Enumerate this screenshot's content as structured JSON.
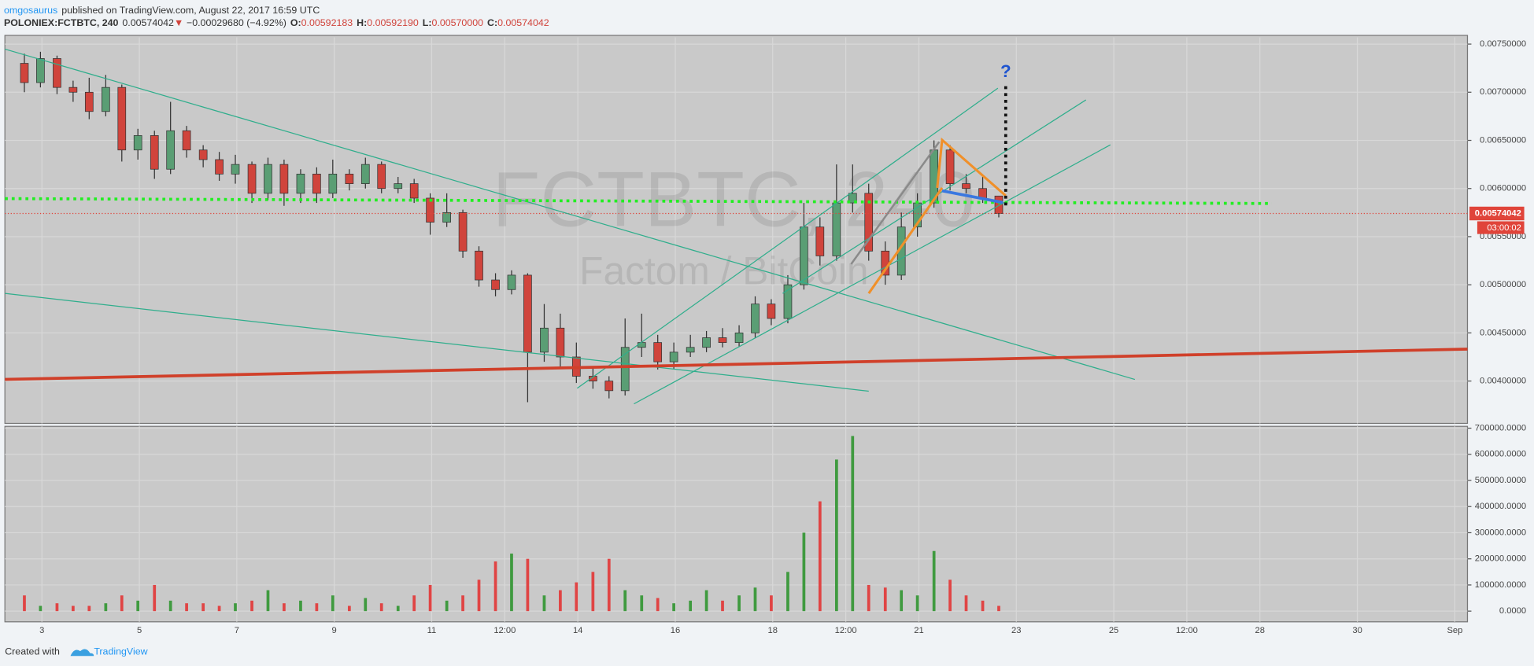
{
  "header": {
    "author": "omgosaurus",
    "published": "published on TradingView.com, August 22, 2017 16:59 UTC",
    "symbol": "POLONIEX:FCTBTC, 240",
    "last": "0.00574042",
    "arrow": "▼",
    "change": "−0.00029680 (−4.92%)",
    "o_label": "O:",
    "o": "0.00592183",
    "h_label": "H:",
    "h": "0.00592190",
    "l_label": "L:",
    "l": "0.00570000",
    "c_label": "C:",
    "c": "0.00574042"
  },
  "watermark": {
    "symbol": "FCTBTC, 240",
    "name": "Factom / BitCoin"
  },
  "annotations": [
    "?"
  ],
  "footer": {
    "created": "Created with",
    "brand": "TradingView"
  },
  "chart_data": {
    "type": "candlestick",
    "up_color": "#5a9e74",
    "down_color": "#d0443c",
    "grid": true,
    "x": [
      2.64,
      2.97,
      3.31,
      3.64,
      3.97,
      4.31,
      4.64,
      4.97,
      5.31,
      5.64,
      5.97,
      6.31,
      6.64,
      6.97,
      7.31,
      7.64,
      7.97,
      8.31,
      8.64,
      8.97,
      9.31,
      9.64,
      9.97,
      10.31,
      10.64,
      10.97,
      11.31,
      11.64,
      11.97,
      12.31,
      12.64,
      12.97,
      13.31,
      13.64,
      13.97,
      14.31,
      14.64,
      14.97,
      15.31,
      15.64,
      15.97,
      16.31,
      16.64,
      16.97,
      17.31,
      17.64,
      17.97,
      18.31,
      18.64,
      18.97,
      19.31,
      19.64,
      19.97,
      20.31,
      20.64,
      20.97,
      21.31,
      21.64,
      21.97,
      22.31,
      22.64
    ],
    "open": [
      0.0073,
      0.0071,
      0.00735,
      0.00705,
      0.007,
      0.0068,
      0.00705,
      0.0064,
      0.00655,
      0.0062,
      0.0066,
      0.0064,
      0.0063,
      0.00615,
      0.00625,
      0.00595,
      0.00625,
      0.00595,
      0.00615,
      0.00595,
      0.00615,
      0.00605,
      0.00625,
      0.006,
      0.00605,
      0.0059,
      0.00565,
      0.00575,
      0.00535,
      0.00505,
      0.00495,
      0.0051,
      0.0043,
      0.00455,
      0.00425,
      0.00405,
      0.004,
      0.0039,
      0.00435,
      0.0044,
      0.0042,
      0.0043,
      0.00435,
      0.00445,
      0.0044,
      0.0045,
      0.0048,
      0.00465,
      0.005,
      0.0056,
      0.0053,
      0.00585,
      0.00595,
      0.00535,
      0.0051,
      0.0056,
      0.00585,
      0.0064,
      0.00605,
      0.006,
      0.00592183
    ],
    "high": [
      0.0074,
      0.00742,
      0.00738,
      0.00712,
      0.00715,
      0.00718,
      0.00708,
      0.00662,
      0.0066,
      0.0069,
      0.00665,
      0.00645,
      0.00638,
      0.00635,
      0.00628,
      0.00632,
      0.0063,
      0.0062,
      0.00622,
      0.0063,
      0.0062,
      0.00632,
      0.00628,
      0.00612,
      0.0061,
      0.00595,
      0.00595,
      0.00578,
      0.0054,
      0.00512,
      0.00515,
      0.00512,
      0.0048,
      0.0047,
      0.0044,
      0.00415,
      0.00405,
      0.00465,
      0.0047,
      0.00448,
      0.0044,
      0.00448,
      0.00452,
      0.00455,
      0.00458,
      0.00488,
      0.00485,
      0.0051,
      0.00585,
      0.0057,
      0.00625,
      0.00625,
      0.00605,
      0.00545,
      0.00575,
      0.00595,
      0.0065,
      0.00645,
      0.00615,
      0.00612,
      0.0059219
    ],
    "low": [
      0.007,
      0.00705,
      0.00698,
      0.0069,
      0.00672,
      0.00675,
      0.00628,
      0.0063,
      0.0061,
      0.00615,
      0.00632,
      0.00622,
      0.00608,
      0.00605,
      0.00585,
      0.00588,
      0.00582,
      0.00585,
      0.00585,
      0.0059,
      0.00598,
      0.006,
      0.00595,
      0.00595,
      0.00585,
      0.00552,
      0.0056,
      0.00528,
      0.00498,
      0.00488,
      0.0049,
      0.00378,
      0.0042,
      0.00415,
      0.00398,
      0.00392,
      0.00382,
      0.00385,
      0.00425,
      0.00412,
      0.00412,
      0.00425,
      0.0043,
      0.00435,
      0.00436,
      0.00445,
      0.00458,
      0.0046,
      0.00495,
      0.0052,
      0.00525,
      0.00575,
      0.00525,
      0.005,
      0.00505,
      0.0055,
      0.0058,
      0.00598,
      0.00595,
      0.00585,
      0.0057
    ],
    "close": [
      0.0071,
      0.00735,
      0.00705,
      0.007,
      0.0068,
      0.00705,
      0.0064,
      0.00655,
      0.0062,
      0.0066,
      0.0064,
      0.0063,
      0.00615,
      0.00625,
      0.00595,
      0.00625,
      0.00595,
      0.00615,
      0.00595,
      0.00615,
      0.00605,
      0.00625,
      0.006,
      0.00605,
      0.0059,
      0.00565,
      0.00575,
      0.00535,
      0.00505,
      0.00495,
      0.0051,
      0.0043,
      0.00455,
      0.00425,
      0.00405,
      0.004,
      0.0039,
      0.00435,
      0.0044,
      0.0042,
      0.0043,
      0.00435,
      0.00445,
      0.0044,
      0.0045,
      0.0048,
      0.00465,
      0.005,
      0.0056,
      0.0053,
      0.00585,
      0.00595,
      0.00535,
      0.0051,
      0.0056,
      0.00585,
      0.0064,
      0.00605,
      0.006,
      0.0059,
      0.00574042
    ],
    "xlim": [
      2.24,
      32.26
    ],
    "xticks": [
      3,
      5,
      7,
      9,
      11,
      {
        "value": 12.5,
        "label": "12:00"
      },
      14,
      16,
      18,
      {
        "value": 19.5,
        "label": "12:00"
      },
      21,
      23,
      25,
      {
        "value": 26.5,
        "label": "12:00"
      },
      28,
      30,
      {
        "value": 32,
        "label": "Sep"
      }
    ],
    "ylim": [
      0.00356,
      0.00757
    ],
    "yticks": [
      {
        "value": 0.0075,
        "label": "0.00750000"
      },
      {
        "value": 0.007,
        "label": "0.00700000"
      },
      {
        "value": 0.0065,
        "label": "0.00650000"
      },
      {
        "value": 0.006,
        "label": "0.00600000"
      },
      {
        "value": 0.0055,
        "label": "0.00550000"
      },
      {
        "value": 0.005,
        "label": "0.00500000"
      },
      {
        "value": 0.0045,
        "label": "0.00450000"
      },
      {
        "value": 0.004,
        "label": "0.00400000"
      }
    ],
    "price_line": {
      "value": 0.00574042,
      "label": "0.00574042",
      "countdown": "03:00:02",
      "color": "#e0443a"
    },
    "volume": {
      "type": "bar",
      "values": [
        60000,
        20000,
        30000,
        20000,
        20000,
        30000,
        60000,
        40000,
        100000,
        40000,
        30000,
        30000,
        20000,
        30000,
        40000,
        80000,
        30000,
        40000,
        30000,
        60000,
        20000,
        50000,
        30000,
        20000,
        60000,
        100000,
        40000,
        60000,
        120000,
        190000,
        220000,
        200000,
        60000,
        80000,
        110000,
        150000,
        200000,
        80000,
        60000,
        50000,
        30000,
        40000,
        80000,
        40000,
        60000,
        90000,
        60000,
        150000,
        300000,
        420000,
        580000,
        670000,
        100000,
        90000,
        80000,
        60000,
        230000,
        120000,
        60000,
        40000,
        20000
      ],
      "up_color": "#3f9a3f",
      "down_color": "#e04444",
      "ylim": [
        -41000,
        707000
      ],
      "yticks": [
        {
          "value": 700000,
          "label": "700000.0000"
        },
        {
          "value": 600000,
          "label": "600000.0000"
        },
        {
          "value": 500000,
          "label": "500000.0000"
        },
        {
          "value": 400000,
          "label": "400000.0000"
        },
        {
          "value": 300000,
          "label": "300000.0000"
        },
        {
          "value": 200000,
          "label": "200000.0000"
        },
        {
          "value": 100000,
          "label": "100000.0000"
        },
        {
          "value": 0,
          "label": "0.0000"
        }
      ]
    }
  }
}
